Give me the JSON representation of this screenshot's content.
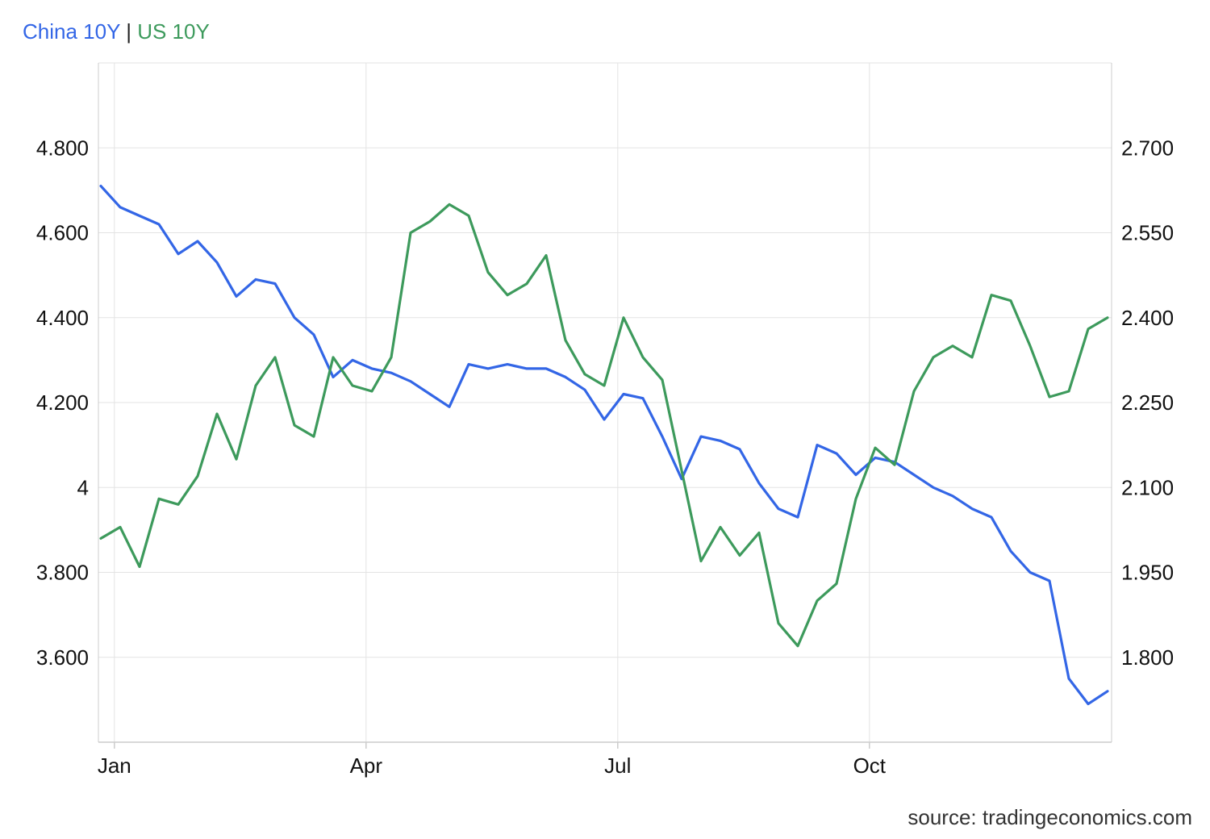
{
  "legend": {
    "china": "China 10Y",
    "separator": "|",
    "us": "US 10Y"
  },
  "source": "source: tradingeconomics.com",
  "colors": {
    "china": "#3366e6",
    "us": "#3d9a5c",
    "grid": "#e3e3e3"
  },
  "chart_data": {
    "type": "line",
    "title": "",
    "x_ticks": [
      "Jan",
      "Apr",
      "Jul",
      "Oct"
    ],
    "x": [
      "Dec 28",
      "Jan 3",
      "Jan 10",
      "Jan 17",
      "Jan 24",
      "Jan 31",
      "Feb 7",
      "Feb 14",
      "Feb 21",
      "Feb 28",
      "Mar 7",
      "Mar 14",
      "Mar 21",
      "Mar 28",
      "Apr 4",
      "Apr 11",
      "Apr 18",
      "Apr 25",
      "May 2",
      "May 9",
      "May 16",
      "May 23",
      "May 30",
      "Jun 6",
      "Jun 13",
      "Jun 20",
      "Jun 27",
      "Jul 4",
      "Jul 11",
      "Jul 18",
      "Jul 25",
      "Aug 1",
      "Aug 8",
      "Aug 15",
      "Aug 22",
      "Aug 29",
      "Sep 5",
      "Sep 12",
      "Sep 19",
      "Sep 26",
      "Oct 3",
      "Oct 10",
      "Oct 17",
      "Oct 24",
      "Oct 31",
      "Nov 7",
      "Nov 14",
      "Nov 21",
      "Nov 28",
      "Dec 5",
      "Dec 12",
      "Dec 19",
      "Dec 26"
    ],
    "y_left": {
      "label": "",
      "ticks": [
        "3.600",
        "3.800",
        "4",
        "4.200",
        "4.400",
        "4.600",
        "4.800"
      ],
      "range": [
        3.4,
        5.0
      ]
    },
    "y_right": {
      "label": "",
      "ticks": [
        "1.800",
        "1.950",
        "2.100",
        "2.250",
        "2.400",
        "2.550",
        "2.700"
      ],
      "range": [
        1.65,
        2.85
      ]
    },
    "grid": true,
    "legend_position": "top-left",
    "series": [
      {
        "name": "China 10Y",
        "axis": "left",
        "values": [
          4.71,
          4.66,
          4.64,
          4.62,
          4.55,
          4.58,
          4.53,
          4.45,
          4.49,
          4.48,
          4.4,
          4.36,
          4.26,
          4.3,
          4.28,
          4.27,
          4.25,
          4.22,
          4.19,
          4.29,
          4.28,
          4.29,
          4.28,
          4.28,
          4.26,
          4.23,
          4.16,
          4.22,
          4.21,
          4.12,
          4.02,
          4.12,
          4.11,
          4.09,
          4.01,
          3.95,
          3.93,
          4.1,
          4.08,
          4.03,
          4.07,
          4.06,
          4.03,
          4.0,
          3.98,
          3.95,
          3.93,
          3.85,
          3.8,
          3.78,
          3.55,
          3.49,
          3.52
        ]
      },
      {
        "name": "US 10Y",
        "axis": "right",
        "values": [
          2.01,
          2.03,
          1.96,
          2.08,
          2.07,
          2.12,
          2.23,
          2.15,
          2.28,
          2.33,
          2.21,
          2.19,
          2.33,
          2.28,
          2.27,
          2.33,
          2.55,
          2.57,
          2.6,
          2.58,
          2.48,
          2.44,
          2.46,
          2.51,
          2.36,
          2.3,
          2.28,
          2.4,
          2.33,
          2.29,
          2.13,
          1.97,
          2.03,
          1.98,
          2.02,
          1.86,
          1.82,
          1.9,
          1.93,
          2.08,
          2.17,
          2.14,
          2.27,
          2.33,
          2.35,
          2.33,
          2.44,
          2.43,
          2.35,
          2.26,
          2.27,
          2.38,
          2.4
        ]
      }
    ]
  }
}
